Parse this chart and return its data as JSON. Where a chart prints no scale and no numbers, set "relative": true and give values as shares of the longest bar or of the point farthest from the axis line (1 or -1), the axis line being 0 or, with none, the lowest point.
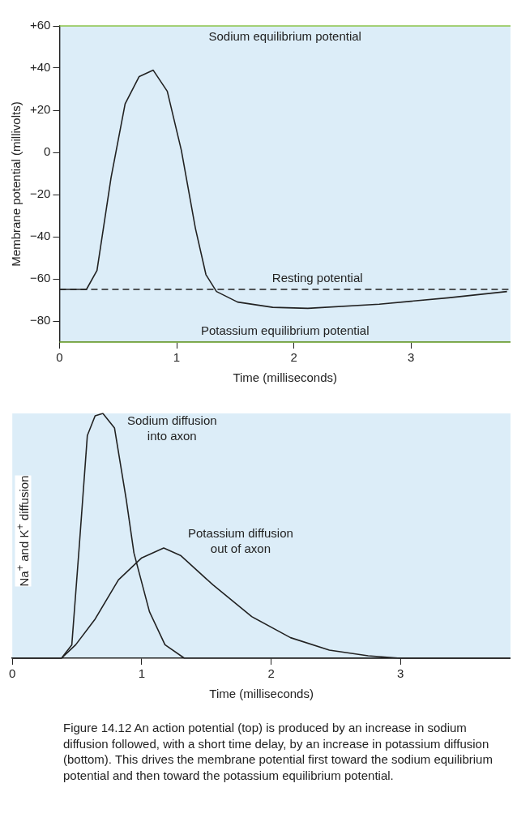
{
  "chart_data": [
    {
      "type": "line",
      "xlabel": "Time (milliseconds)",
      "ylabel": "Membrane potential (millivolts)",
      "xlim": [
        0,
        3.85
      ],
      "xticks": [
        0,
        1,
        2,
        3
      ],
      "ylim": [
        -90,
        60
      ],
      "yticks": [
        {
          "value": 60,
          "label": "+60"
        },
        {
          "value": 40,
          "label": "+40"
        },
        {
          "value": 20,
          "label": "+20"
        },
        0,
        {
          "value": -20,
          "label": "−20"
        },
        {
          "value": -40,
          "label": "−40"
        },
        {
          "value": -60,
          "label": "−60"
        },
        {
          "value": -80,
          "label": "−80"
        }
      ],
      "grid": false,
      "legend": false,
      "marker": "none",
      "line_style": "solid",
      "series": [
        {
          "color": "#222222",
          "x": [
            0,
            0.23,
            0.32,
            0.44,
            0.56,
            0.68,
            0.8,
            0.92,
            1.04,
            1.16,
            1.25,
            1.34,
            1.52,
            1.82,
            2.12,
            2.73,
            3.32,
            3.82
          ],
          "values": [
            -65,
            -65,
            -56,
            -12,
            23,
            36,
            39,
            29,
            1,
            -36,
            -58,
            -66,
            -71,
            -73.5,
            -74,
            -72,
            -69,
            -66
          ]
        }
      ],
      "ref_lines": [
        {
          "axis": "y",
          "value": 60,
          "label": "Sodium equilibrium potential",
          "color": "#8bc34a",
          "line_style": "solid"
        },
        {
          "axis": "y",
          "value": -65,
          "label": "Resting potential",
          "color": "#222222",
          "line_style": "dashed"
        },
        {
          "axis": "y",
          "value": -90,
          "label": "Potassium equilibrium potential",
          "color": "#8bc34a",
          "line_style": "solid"
        }
      ]
    },
    {
      "type": "line",
      "xlabel": "Time (milliseconds)",
      "ylabel": "Na$^{+}$ and K$^{+}$ diffusion",
      "relative": true,
      "xlim": [
        0,
        3.85
      ],
      "xticks": [
        0,
        1,
        2,
        3
      ],
      "grid": false,
      "legend": false,
      "marker": "none",
      "line_style": "solid",
      "series": [
        {
          "name": "Sodium diffusion\ninto axon",
          "color": "#222222",
          "x": [
            0,
            0.38,
            0.46,
            0.52,
            0.58,
            0.64,
            0.7,
            0.79,
            0.88,
            0.94,
            1.06,
            1.18,
            1.33,
            3.85
          ],
          "values": [
            0,
            0,
            0.055,
            0.475,
            0.91,
            0.99,
            1,
            0.94,
            0.65,
            0.43,
            0.19,
            0.055,
            0,
            0
          ]
        },
        {
          "name": "Potassium diffusion\nout of axon",
          "color": "#222222",
          "x": [
            0,
            0.38,
            0.49,
            0.64,
            0.82,
            1.0,
            1.17,
            1.3,
            1.55,
            1.85,
            2.15,
            2.45,
            2.75,
            3.0,
            3.85
          ],
          "values": [
            0,
            0,
            0.055,
            0.16,
            0.32,
            0.41,
            0.45,
            0.42,
            0.3,
            0.17,
            0.084,
            0.033,
            0.01,
            0,
            0
          ]
        }
      ],
      "annotations": [
        "Figure 14.12 An action potential (top) is produced by an increase in sodium diffusion followed, with a short time delay, by an increase in potassium diffusion (bottom). This drives the membrane potential first toward the sodium equilibrium potential and then toward the potassium equilibrium potential."
      ]
    }
  ]
}
